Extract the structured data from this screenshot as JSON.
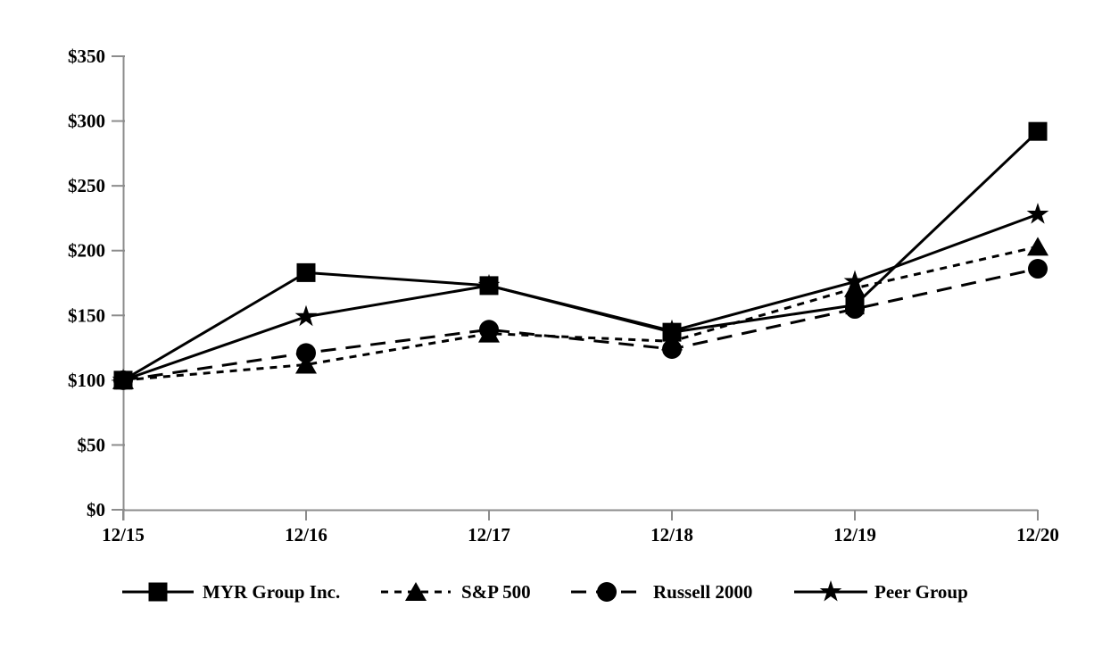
{
  "chart_data": {
    "type": "line",
    "categories": [
      "12/15",
      "12/16",
      "12/17",
      "12/18",
      "12/19",
      "12/20"
    ],
    "series": [
      {
        "name": "MYR Group Inc.",
        "marker": "square",
        "line_style": "solid",
        "values": [
          100,
          183,
          173,
          137,
          158,
          292
        ]
      },
      {
        "name": "S&P 500",
        "marker": "triangle",
        "line_style": "dash",
        "values": [
          100,
          112,
          136,
          130,
          171,
          203
        ]
      },
      {
        "name": "Russell 2000",
        "marker": "circle",
        "line_style": "longdash",
        "values": [
          100,
          121,
          139,
          124,
          155,
          186
        ]
      },
      {
        "name": "Peer Group",
        "marker": "star",
        "line_style": "solid",
        "values": [
          100,
          149,
          173,
          138,
          176,
          228
        ]
      }
    ],
    "y_axis": {
      "tick_labels": [
        "$0",
        "$50",
        "$100",
        "$150",
        "$200",
        "$250",
        "$300",
        "$350"
      ],
      "tick_values": [
        0,
        50,
        100,
        150,
        200,
        250,
        300,
        350
      ],
      "ylim": [
        0,
        350
      ]
    },
    "xlabel": "",
    "ylabel": "",
    "grid": "off",
    "legend_position": "bottom",
    "colors": {
      "series": "#000000",
      "axis": "#8c8c8c",
      "text": "#000000",
      "background": "#ffffff"
    }
  }
}
